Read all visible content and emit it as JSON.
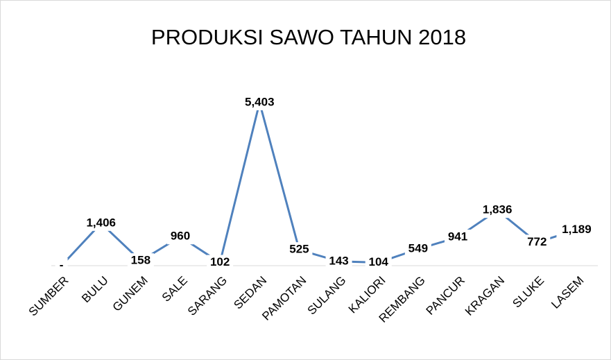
{
  "chart_data": {
    "type": "line",
    "title": "PRODUKSI SAWO TAHUN 2018",
    "categories": [
      "SUMBER",
      "BULU",
      "GUNEM",
      "SALE",
      "SARANG",
      "SEDAN",
      "PAMOTAN",
      "SULANG",
      "KALIORI",
      "REMBANG",
      "PANCUR",
      "KRAGAN",
      "SLUKE",
      "LASEM"
    ],
    "values": [
      0,
      1406,
      158,
      960,
      102,
      5403,
      525,
      143,
      104,
      549,
      941,
      1836,
      772,
      1189
    ],
    "value_labels": [
      "-",
      "1,406",
      "158",
      "960",
      "102",
      "5,403",
      "525",
      "143",
      "104",
      "549",
      "941",
      "1,836",
      "772",
      "1,189"
    ],
    "color": "#4f81bd",
    "ylim": [
      0,
      6000
    ]
  }
}
